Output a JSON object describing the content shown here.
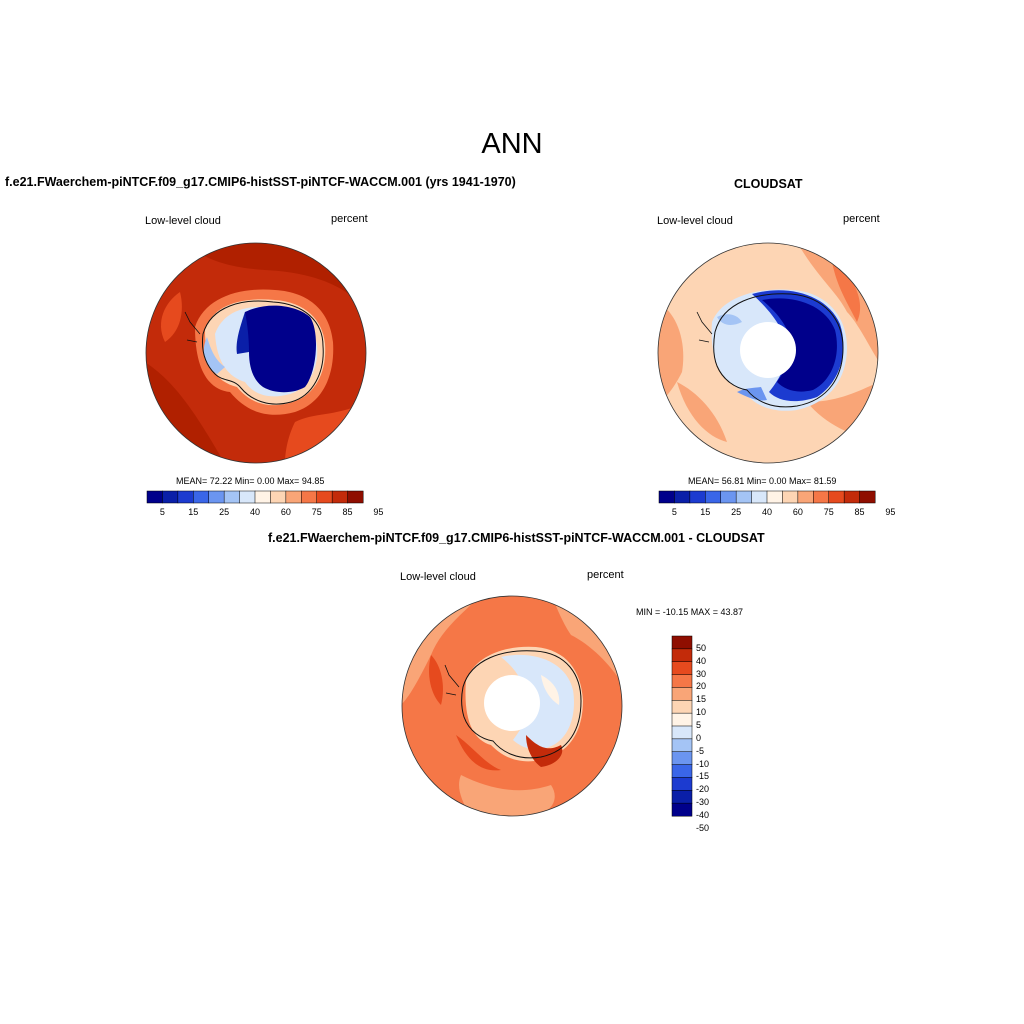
{
  "page_title": "ANN",
  "colors": {
    "bg": "#ffffff",
    "coast": "#111111",
    "abs_palette": [
      "#00008b",
      "#0a1fa8",
      "#1c3bd0",
      "#3a66e8",
      "#6b95f0",
      "#a4c4f5",
      "#d8e7fa",
      "#fff3e6",
      "#fdd5b4",
      "#f9a577",
      "#f57747",
      "#e64a1e",
      "#c32b0a",
      "#8f0e00"
    ],
    "diff_palette": [
      "#00008b",
      "#0a1fa8",
      "#1c3bd0",
      "#3a66e8",
      "#6b95f0",
      "#a4c4f5",
      "#d8e7fa",
      "#fff3e6",
      "#fdd5b4",
      "#f9a577",
      "#f57747",
      "#e64a1e",
      "#c32b0a",
      "#8f0e00"
    ]
  },
  "panels": {
    "model": {
      "title": "f.e21.FWaerchem-piNTCF.f09_g17.CMIP6-histSST-piNTCF-WACCM.001 (yrs 1941-1970)",
      "left_label": "Low-level cloud",
      "right_label": "percent",
      "stats": "MEAN=  72.22  Min=    0.00  Max=  94.85",
      "colorbar_ticks": [
        "5",
        "15",
        "25",
        "40",
        "60",
        "75",
        "85",
        "95"
      ]
    },
    "obs": {
      "title": "CLOUDSAT",
      "left_label": "Low-level cloud",
      "right_label": "percent",
      "stats": "MEAN=  56.81  Min=    0.00  Max=  81.59",
      "colorbar_ticks": [
        "5",
        "15",
        "25",
        "40",
        "60",
        "75",
        "85",
        "95"
      ]
    },
    "diff": {
      "title": "f.e21.FWaerchem-piNTCF.f09_g17.CMIP6-histSST-piNTCF-WACCM.001 - CLOUDSAT",
      "left_label": "Low-level cloud",
      "right_label": "percent",
      "stats": "MIN = -10.15 MAX =  43.87",
      "colorbar_ticks": [
        "50",
        "40",
        "30",
        "20",
        "15",
        "10",
        "5",
        "0",
        "-5",
        "-10",
        "-15",
        "-20",
        "-30",
        "-40",
        "-50"
      ]
    }
  }
}
